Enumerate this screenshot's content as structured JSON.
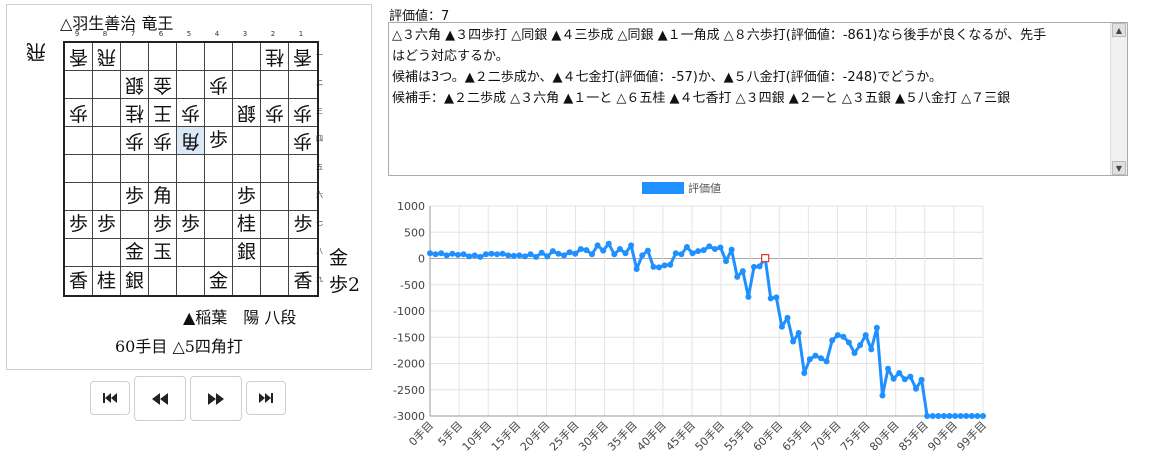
{
  "players": {
    "gote": "△羽生善治 竜王",
    "sente": "▲稲葉　陽 八段"
  },
  "status": "60手目 △5四角打",
  "hands": {
    "gote": [
      "飛"
    ],
    "sente": [
      "金",
      "歩2"
    ]
  },
  "board": {
    "files": [
      "9",
      "8",
      "7",
      "6",
      "5",
      "4",
      "3",
      "2",
      "1"
    ],
    "ranks": [
      "一",
      "二",
      "三",
      "四",
      "五",
      "六",
      "七",
      "八",
      "九"
    ],
    "last_move": [
      4,
      3
    ],
    "rows": [
      [
        {
          "p": "香",
          "o": "g"
        },
        {
          "p": "飛",
          "o": "g"
        },
        null,
        null,
        null,
        null,
        null,
        {
          "p": "桂",
          "o": "g"
        },
        {
          "p": "香",
          "o": "g"
        }
      ],
      [
        null,
        null,
        {
          "p": "銀",
          "o": "g"
        },
        {
          "p": "金",
          "o": "g"
        },
        null,
        {
          "p": "歩",
          "o": "g"
        },
        null,
        null,
        null
      ],
      [
        {
          "p": "歩",
          "o": "g"
        },
        null,
        {
          "p": "桂",
          "o": "g"
        },
        {
          "p": "王",
          "o": "g"
        },
        {
          "p": "歩",
          "o": "g"
        },
        null,
        {
          "p": "銀",
          "o": "g"
        },
        {
          "p": "歩",
          "o": "g"
        },
        {
          "p": "歩",
          "o": "g"
        }
      ],
      [
        null,
        null,
        {
          "p": "歩",
          "o": "g"
        },
        {
          "p": "歩",
          "o": "g"
        },
        {
          "p": "角",
          "o": "g"
        },
        {
          "p": "歩",
          "o": "s"
        },
        null,
        null,
        {
          "p": "歩",
          "o": "g"
        }
      ],
      [
        null,
        null,
        null,
        null,
        null,
        null,
        null,
        null,
        null
      ],
      [
        null,
        null,
        {
          "p": "歩",
          "o": "s"
        },
        {
          "p": "角",
          "o": "s"
        },
        null,
        null,
        {
          "p": "歩",
          "o": "s"
        },
        null,
        null
      ],
      [
        {
          "p": "歩",
          "o": "s"
        },
        {
          "p": "歩",
          "o": "s"
        },
        null,
        {
          "p": "歩",
          "o": "s"
        },
        {
          "p": "歩",
          "o": "s"
        },
        null,
        {
          "p": "桂",
          "o": "s"
        },
        null,
        {
          "p": "歩",
          "o": "s"
        }
      ],
      [
        null,
        null,
        {
          "p": "金",
          "o": "s"
        },
        {
          "p": "玉",
          "o": "s"
        },
        null,
        null,
        {
          "p": "銀",
          "o": "s"
        },
        null,
        null
      ],
      [
        {
          "p": "香",
          "o": "s"
        },
        {
          "p": "桂",
          "o": "s"
        },
        {
          "p": "銀",
          "o": "s"
        },
        null,
        null,
        {
          "p": "金",
          "o": "s"
        },
        null,
        null,
        {
          "p": "香",
          "o": "s"
        }
      ]
    ]
  },
  "buttons": {
    "first": "first-move",
    "prev": "previous-move",
    "next": "next-move",
    "last": "last-move"
  },
  "eval_label": "評価値：7",
  "comment": [
    "△３六角 ▲３四歩打 △同銀 ▲４三歩成 △同銀 ▲１一角成 △８六歩打(評価値：-861)なら後手が良くなるが、先手",
    "はどう対応するか。",
    "候補は3つ。▲２二歩成か、▲４七金打(評価値：-57)か、▲５八金打(評価値：-248)でどうか。",
    "候補手：▲２二歩成 △３六角 ▲１一と △６五桂 ▲４七香打 △３四銀 ▲２一と △３五銀 ▲５八金打 △７三銀"
  ],
  "chart_data": {
    "type": "line",
    "legend": "評価値",
    "legend_position": "top",
    "color": "#1e90ff",
    "ylim": [
      -3000,
      1000
    ],
    "yticks": [
      1000,
      500,
      0,
      -500,
      -1000,
      -1500,
      -2000,
      -2500,
      -3000
    ],
    "xticks": [
      "0手目",
      "5手目",
      "10手目",
      "15手目",
      "20手目",
      "25手目",
      "30手目",
      "35手目",
      "40手目",
      "45手目",
      "50手目",
      "55手目",
      "60手目",
      "65手目",
      "70手目",
      "75手目",
      "80手目",
      "85手目",
      "90手目",
      "99手目"
    ],
    "x": [
      0,
      1,
      2,
      3,
      4,
      5,
      6,
      7,
      8,
      9,
      10,
      11,
      12,
      13,
      14,
      15,
      16,
      17,
      18,
      19,
      20,
      21,
      22,
      23,
      24,
      25,
      26,
      27,
      28,
      29,
      30,
      31,
      32,
      33,
      34,
      35,
      36,
      37,
      38,
      39,
      40,
      41,
      42,
      43,
      44,
      45,
      46,
      47,
      48,
      49,
      50,
      51,
      52,
      53,
      54,
      55,
      56,
      57,
      58,
      59,
      60,
      61,
      62,
      63,
      64,
      65,
      66,
      67,
      68,
      69,
      70,
      71,
      72,
      73,
      74,
      75,
      76,
      77,
      78,
      79,
      80,
      81,
      82,
      83,
      84,
      85,
      86,
      87,
      88,
      89,
      90,
      91,
      92,
      93,
      94,
      95,
      96,
      97,
      98,
      99
    ],
    "values": [
      100,
      80,
      100,
      60,
      90,
      70,
      80,
      40,
      60,
      30,
      80,
      90,
      80,
      90,
      60,
      50,
      60,
      40,
      80,
      30,
      110,
      40,
      140,
      90,
      60,
      120,
      90,
      180,
      160,
      80,
      250,
      150,
      280,
      80,
      180,
      100,
      250,
      -200,
      60,
      150,
      -160,
      -170,
      -130,
      -120,
      100,
      80,
      220,
      100,
      140,
      160,
      230,
      180,
      210,
      -50,
      170,
      -350,
      -240,
      -730,
      -160,
      -150,
      7,
      -760,
      -740,
      -1300,
      -1130,
      -1580,
      -1420,
      -2180,
      -1920,
      -1850,
      -1900,
      -1960,
      -1560,
      -1460,
      -1490,
      -1600,
      -1800,
      -1650,
      -1460,
      -1730,
      -1320,
      -2610,
      -2100,
      -2290,
      -2180,
      -2300,
      -2250,
      -2480,
      -2310,
      -3000,
      -3000,
      -3000,
      -3000,
      -3000,
      -3000,
      -3000,
      -3000,
      -3000,
      -3000,
      -3000
    ],
    "highlight_index": 60
  }
}
